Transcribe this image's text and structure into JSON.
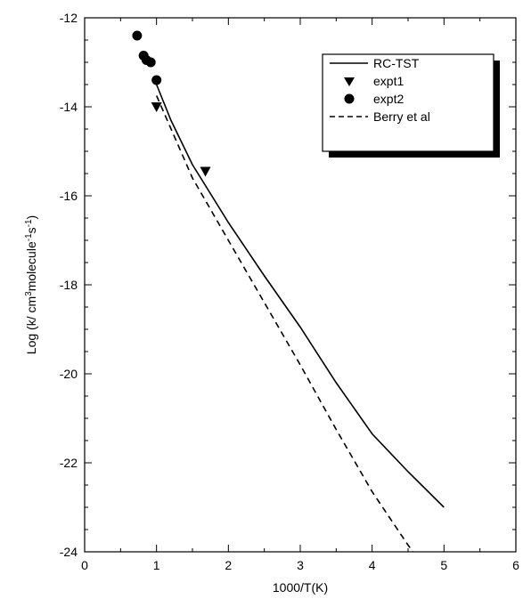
{
  "chart_data": {
    "type": "line",
    "title": "",
    "xlabel": "1000/T(K)",
    "ylabel_parts": {
      "pre": "Log (k/ cm",
      "sup1": "3",
      "mid": "molecule",
      "sup2": "-1",
      "mid2": "s",
      "sup3": "-1",
      "post": ")"
    },
    "xlim": [
      0,
      6
    ],
    "ylim": [
      -24,
      -12
    ],
    "xticks": [
      0,
      1,
      2,
      3,
      4,
      5,
      6
    ],
    "yticks": [
      -24,
      -22,
      -20,
      -18,
      -16,
      -14,
      -12
    ],
    "grid": false,
    "legend_position": "top-right",
    "legend": [
      "RC-TST",
      "expt1",
      "expt2",
      "Berry et al"
    ],
    "series": [
      {
        "name": "RC-TST",
        "style": "solid-line",
        "color": "#000000",
        "x": [
          1.0,
          1.2,
          1.5,
          2.0,
          2.5,
          3.0,
          3.5,
          4.0,
          4.5,
          5.0
        ],
        "y": [
          -13.5,
          -14.3,
          -15.3,
          -16.6,
          -17.8,
          -18.95,
          -20.2,
          -21.35,
          -22.2,
          -23.0
        ]
      },
      {
        "name": "expt1",
        "style": "marker-triangle-down",
        "color": "#000000",
        "x": [
          1.0,
          1.68
        ],
        "y": [
          -14.0,
          -15.45
        ]
      },
      {
        "name": "expt2",
        "style": "marker-circle",
        "color": "#000000",
        "x": [
          0.73,
          0.82,
          0.86,
          0.92,
          1.0
        ],
        "y": [
          -12.4,
          -12.85,
          -12.95,
          -13.0,
          -13.4
        ]
      },
      {
        "name": "Berry et al",
        "style": "dashed-line",
        "color": "#000000",
        "x": [
          1.0,
          1.5,
          2.0,
          2.5,
          3.0,
          3.5,
          4.0,
          4.5,
          4.57
        ],
        "y": [
          -13.75,
          -15.6,
          -17.0,
          -18.4,
          -19.8,
          -21.25,
          -22.65,
          -23.85,
          -24.0
        ]
      }
    ]
  }
}
